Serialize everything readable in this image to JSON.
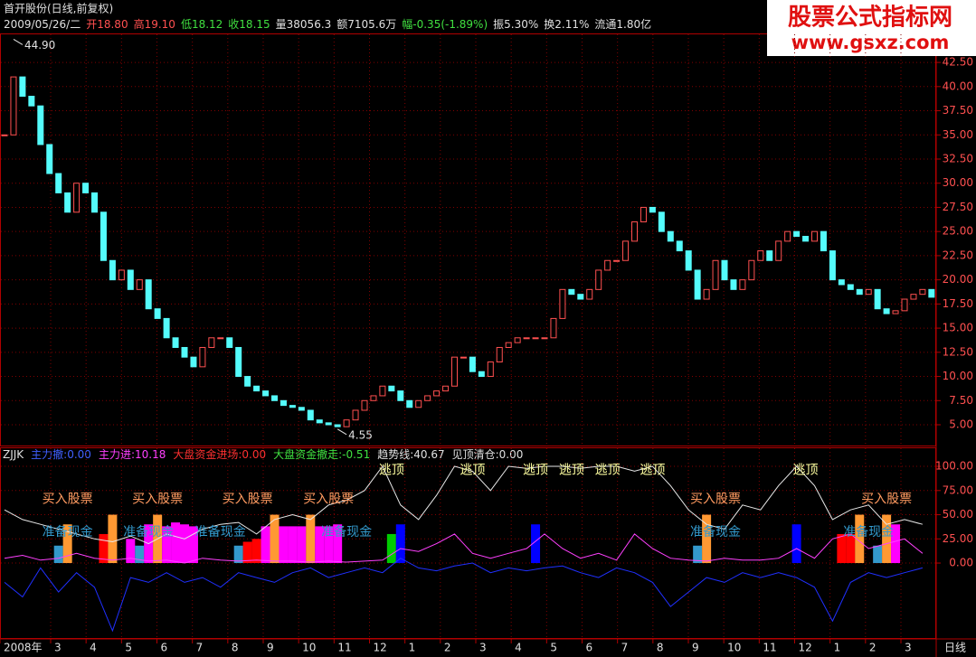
{
  "header": {
    "title": "首开股份(日线,前复权)",
    "date": "2009/05/26/二",
    "quote": [
      {
        "text": "开18.80",
        "color": "#ff5050"
      },
      {
        "text": "高19.10",
        "color": "#ff5050"
      },
      {
        "text": "低18.12",
        "color": "#40e040"
      },
      {
        "text": "收18.15",
        "color": "#40e040"
      },
      {
        "text": "量38056.3",
        "color": "#e0e0e0"
      },
      {
        "text": "额7105.6万",
        "color": "#e0e0e0"
      },
      {
        "text": "幅-0.35(-1.89%)",
        "color": "#40e040"
      },
      {
        "text": "振5.30%",
        "color": "#e0e0e0"
      },
      {
        "text": "换2.11%",
        "color": "#e0e0e0"
      },
      {
        "text": "流通1.80亿",
        "color": "#e0e0e0"
      }
    ]
  },
  "watermark": {
    "title": "股票公式指标网",
    "url": "www.gsxz.com"
  },
  "chart_data": [
    {
      "type": "candlestick",
      "up_color": "#ff5050",
      "down_color": "#54fcfc",
      "grid": true,
      "x_labels": [
        "2008年",
        "3",
        "4",
        "5",
        "6",
        "7",
        "8",
        "9",
        "10",
        "11",
        "12",
        "1",
        "2",
        "3",
        "4",
        "5",
        "6",
        "7",
        "8",
        "9",
        "10",
        "11",
        "12",
        "1",
        "2",
        "3"
      ],
      "x_label_end": "日线",
      "close": [
        35,
        41,
        39,
        38,
        34,
        31,
        29,
        27,
        30,
        29,
        27,
        22,
        20,
        21,
        19,
        20,
        17,
        16,
        14,
        13,
        12,
        11,
        13,
        14,
        14,
        13,
        10,
        9,
        8.5,
        8,
        7.5,
        7,
        6.8,
        6.5,
        5.5,
        5.2,
        5,
        4.8,
        5.5,
        6.5,
        7.5,
        8,
        9,
        8.5,
        7.5,
        6.8,
        7.5,
        8,
        8.5,
        9,
        12,
        12,
        10.5,
        10,
        11.5,
        13,
        13.5,
        14,
        14,
        14,
        14,
        16,
        19,
        18.5,
        18,
        19,
        21,
        22,
        22,
        24,
        26,
        27.5,
        27,
        25,
        24,
        23,
        21,
        18,
        19,
        22,
        20,
        19,
        20,
        22,
        23,
        22,
        24,
        25,
        24.5,
        24,
        25,
        23,
        20,
        19.5,
        19,
        18.5,
        19,
        17,
        16.5,
        16.8,
        18,
        18.5,
        19,
        18.2
      ],
      "ylim": [
        2.85,
        45.5
      ],
      "yticks": [
        {
          "value": 5,
          "label": "5.00"
        },
        {
          "value": 7.5,
          "label": "7.50"
        },
        {
          "value": 10,
          "label": "10.00"
        },
        {
          "value": 12.5,
          "label": "12.50"
        },
        {
          "value": 15,
          "label": "15.00"
        },
        {
          "value": 17.5,
          "label": "17.50"
        },
        {
          "value": 20,
          "label": "20.00"
        },
        {
          "value": 22.5,
          "label": "22.50"
        },
        {
          "value": 25,
          "label": "25.00"
        },
        {
          "value": 27.5,
          "label": "27.50"
        },
        {
          "value": 30,
          "label": "30.00"
        },
        {
          "value": 32.5,
          "label": "32.50"
        },
        {
          "value": 35,
          "label": "35.00"
        },
        {
          "value": 37.5,
          "label": "37.50"
        },
        {
          "value": 40,
          "label": "40.00"
        },
        {
          "value": 42.5,
          "label": "42.50"
        }
      ],
      "annotations": [
        {
          "text": "44.90",
          "x": 1,
          "y": 44.9
        },
        {
          "text": "4.55",
          "x": 37,
          "y": 4.55
        }
      ]
    },
    {
      "type": "indicator",
      "grid": true,
      "legend": [
        {
          "text": "ZJJK",
          "color": "#e0e0e0"
        },
        {
          "text": "主力撤:0.00",
          "color": "#4060ff"
        },
        {
          "text": "主力进:10.18",
          "color": "#ff40ff"
        },
        {
          "text": "大盘资金进场:0.00",
          "color": "#ff3030"
        },
        {
          "text": "大盘资金撤走:-0.51",
          "color": "#40e040"
        },
        {
          "text": "趋势线:40.67",
          "color": "#e0e0e0"
        },
        {
          "text": "见顶清仓:0.00",
          "color": "#e0e0e0"
        }
      ],
      "ylim": [
        -76.6,
        117.8
      ],
      "yticks": [
        {
          "value": 0,
          "label": "0.00"
        },
        {
          "value": 25,
          "label": "25.00"
        },
        {
          "value": 50,
          "label": "50.00"
        },
        {
          "value": 75,
          "label": "75.00"
        },
        {
          "value": 100,
          "label": "100.00"
        }
      ],
      "bars": {
        "x": [
          6,
          7,
          11,
          12,
          14,
          15,
          16,
          17,
          18,
          19,
          20,
          21,
          26,
          27,
          28,
          29,
          30,
          31,
          32,
          33,
          34,
          35,
          36,
          37,
          43,
          44,
          59,
          77,
          78,
          88,
          93,
          94,
          95,
          97,
          98,
          99
        ],
        "values": [
          18,
          40,
          30,
          50,
          25,
          18,
          40,
          50,
          38,
          42,
          40,
          38,
          18,
          22,
          25,
          38,
          50,
          38,
          38,
          38,
          50,
          38,
          38,
          40,
          30,
          40,
          40,
          18,
          50,
          40,
          30,
          30,
          50,
          18,
          50,
          40
        ],
        "colors": [
          "#3399cc",
          "#ff9933",
          "#ff0000",
          "#ff9933",
          "#ff00ff",
          "#3399cc",
          "#ff00ff",
          "#ff9933",
          "#ff00ff",
          "#ff00ff",
          "#ff00ff",
          "#ff00ff",
          "#3399cc",
          "#ff0000",
          "#ff0000",
          "#ff00ff",
          "#ff9933",
          "#ff00ff",
          "#ff00ff",
          "#ff00ff",
          "#ff9933",
          "#ff00ff",
          "#ff00ff",
          "#ff00ff",
          "#00cc00",
          "#0000ff",
          "#0000ff",
          "#3399cc",
          "#ff9933",
          "#0000ff",
          "#ff0000",
          "#ff0000",
          "#ff9933",
          "#3399cc",
          "#ff9933",
          "#ff00ff"
        ]
      },
      "series": [
        {
          "color": "#e8e8e8",
          "x": [
            0,
            2,
            4,
            6,
            8,
            10,
            12,
            14,
            16,
            18,
            20,
            22,
            24,
            26,
            28,
            30,
            32,
            34,
            36,
            38,
            40,
            42,
            44,
            46,
            48,
            50,
            52,
            54,
            56,
            58,
            60,
            62,
            64,
            66,
            68,
            70,
            72,
            74,
            76,
            78,
            80,
            82,
            84,
            86,
            88,
            90,
            92,
            94,
            96,
            98,
            100,
            102
          ],
          "values": [
            55,
            45,
            40,
            35,
            30,
            25,
            22,
            28,
            20,
            30,
            25,
            35,
            40,
            42,
            30,
            45,
            50,
            45,
            60,
            65,
            75,
            100,
            60,
            45,
            70,
            100,
            95,
            75,
            100,
            98,
            100,
            100,
            98,
            100,
            100,
            95,
            100,
            80,
            55,
            40,
            35,
            60,
            55,
            80,
            100,
            80,
            45,
            55,
            60,
            40,
            45,
            40
          ]
        },
        {
          "color": "#2030ff",
          "x": [
            0,
            2,
            4,
            6,
            8,
            10,
            12,
            14,
            16,
            18,
            20,
            22,
            24,
            26,
            28,
            30,
            32,
            34,
            36,
            38,
            40,
            42,
            44,
            46,
            48,
            50,
            52,
            54,
            56,
            58,
            60,
            62,
            64,
            66,
            68,
            70,
            72,
            74,
            76,
            78,
            80,
            82,
            84,
            86,
            88,
            90,
            92,
            94,
            96,
            98,
            100,
            102
          ],
          "values": [
            -20,
            -35,
            -5,
            -30,
            -10,
            -25,
            -70,
            -15,
            -20,
            -10,
            -20,
            -15,
            -25,
            -10,
            -15,
            -20,
            -10,
            -5,
            -15,
            -10,
            -5,
            -10,
            5,
            -5,
            -8,
            -3,
            0,
            -10,
            -5,
            -8,
            -5,
            -3,
            -10,
            -15,
            -5,
            -10,
            -20,
            -45,
            -30,
            -15,
            -20,
            -10,
            -15,
            -10,
            -15,
            -25,
            -60,
            -20,
            -10,
            -15,
            -10,
            -5
          ]
        },
        {
          "color": "#ff40ff",
          "x": [
            0,
            2,
            4,
            6,
            8,
            10,
            12,
            14,
            16,
            18,
            20,
            22,
            24,
            26,
            28,
            30,
            32,
            34,
            36,
            38,
            40,
            42,
            44,
            46,
            48,
            50,
            52,
            54,
            56,
            58,
            60,
            62,
            64,
            66,
            68,
            70,
            72,
            74,
            76,
            78,
            80,
            82,
            84,
            86,
            88,
            90,
            92,
            94,
            96,
            98,
            100,
            102
          ],
          "values": [
            5,
            8,
            3,
            5,
            10,
            5,
            3,
            5,
            2,
            3,
            0,
            5,
            3,
            2,
            3,
            2,
            2,
            1,
            2,
            1,
            2,
            3,
            15,
            12,
            20,
            30,
            10,
            5,
            10,
            15,
            30,
            15,
            5,
            10,
            3,
            30,
            15,
            5,
            3,
            2,
            5,
            3,
            3,
            5,
            15,
            5,
            25,
            30,
            15,
            20,
            25,
            10
          ]
        }
      ],
      "signals": [
        {
          "text": "买入股票",
          "x": 7,
          "y": 66,
          "color": "#ff9a60"
        },
        {
          "text": "买入股票",
          "x": 17,
          "y": 66,
          "color": "#ff9a60"
        },
        {
          "text": "买入股票",
          "x": 27,
          "y": 66,
          "color": "#ff9a60"
        },
        {
          "text": "买入股票",
          "x": 36,
          "y": 66,
          "color": "#ff9a60"
        },
        {
          "text": "买入股票",
          "x": 79,
          "y": 66,
          "color": "#ff9a60"
        },
        {
          "text": "买入股票",
          "x": 98,
          "y": 66,
          "color": "#ff9a60"
        },
        {
          "text": "准备现金",
          "x": 7,
          "y": 32,
          "color": "#3399cc"
        },
        {
          "text": "准备现金",
          "x": 16,
          "y": 32,
          "color": "#3399cc"
        },
        {
          "text": "准备现金",
          "x": 24,
          "y": 32,
          "color": "#3399cc"
        },
        {
          "text": "准备现金",
          "x": 38,
          "y": 32,
          "color": "#3399cc"
        },
        {
          "text": "准备现金",
          "x": 79,
          "y": 32,
          "color": "#3399cc"
        },
        {
          "text": "准备现金",
          "x": 96,
          "y": 32,
          "color": "#3399cc"
        },
        {
          "text": "逃顶",
          "x": 43,
          "y": 96,
          "color": "#ffffa0"
        },
        {
          "text": "逃顶",
          "x": 52,
          "y": 96,
          "color": "#ffffa0"
        },
        {
          "text": "逃顶",
          "x": 59,
          "y": 96,
          "color": "#ffffa0"
        },
        {
          "text": "逃顶",
          "x": 63,
          "y": 96,
          "color": "#ffffa0"
        },
        {
          "text": "逃顶",
          "x": 67,
          "y": 96,
          "color": "#ffffa0"
        },
        {
          "text": "逃顶",
          "x": 72,
          "y": 96,
          "color": "#ffffa0"
        },
        {
          "text": "逃顶",
          "x": 89,
          "y": 96,
          "color": "#ffffa0"
        }
      ]
    }
  ]
}
